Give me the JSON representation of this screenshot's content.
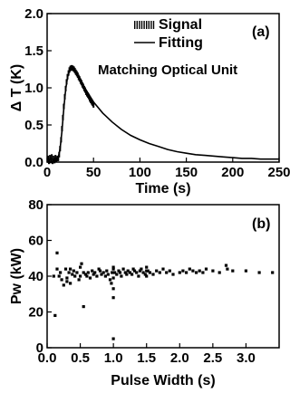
{
  "chart_data": [
    {
      "type": "line",
      "panel_label": "(a)",
      "annotation": "Matching Optical Unit",
      "xlabel": "Time (s)",
      "ylabel": "Δ T (K)",
      "xlim": [
        0,
        250
      ],
      "ylim": [
        0.0,
        2.0
      ],
      "x_ticks": [
        "0",
        "50",
        "100",
        "150",
        "200",
        "250"
      ],
      "y_ticks": [
        "0.0",
        "0.5",
        "1.0",
        "1.5",
        "2.0"
      ],
      "legend": {
        "position": "top-right"
      },
      "series": [
        {
          "name": "Signal",
          "style": "markers",
          "x": [
            1,
            2,
            3,
            4,
            5,
            6,
            7,
            8,
            9,
            10,
            11,
            12,
            13,
            14,
            15,
            16,
            17,
            18,
            19,
            20,
            21,
            22,
            23,
            24,
            25,
            26,
            27,
            28,
            29,
            30,
            31,
            32,
            33,
            34,
            35,
            36,
            37,
            38,
            39,
            40,
            41,
            42,
            43,
            44,
            45,
            46,
            47,
            48,
            49,
            50
          ],
          "y": [
            0.05,
            0.01,
            0.06,
            0.02,
            0.07,
            0.01,
            0.05,
            0.02,
            0.06,
            0.03,
            0.05,
            0.05,
            0.1,
            0.18,
            0.3,
            0.45,
            0.6,
            0.75,
            0.88,
            0.99,
            1.08,
            1.15,
            1.2,
            1.24,
            1.26,
            1.27,
            1.27,
            1.26,
            1.25,
            1.23,
            1.21,
            1.19,
            1.17,
            1.14,
            1.12,
            1.09,
            1.07,
            1.04,
            1.02,
            0.99,
            0.97,
            0.94,
            0.92,
            0.9,
            0.88,
            0.85,
            0.83,
            0.81,
            0.79,
            0.77
          ]
        },
        {
          "name": "Fitting",
          "style": "line",
          "x": [
            0,
            5,
            10,
            12,
            14,
            16,
            18,
            20,
            22,
            24,
            26,
            28,
            30,
            35,
            40,
            45,
            50,
            60,
            70,
            80,
            90,
            100,
            110,
            120,
            130,
            140,
            150,
            160,
            170,
            180,
            190,
            200,
            210,
            220,
            230,
            240,
            250
          ],
          "y": [
            0.0,
            0.0,
            0.02,
            0.06,
            0.18,
            0.42,
            0.72,
            0.98,
            1.14,
            1.23,
            1.27,
            1.26,
            1.24,
            1.13,
            1.01,
            0.91,
            0.81,
            0.66,
            0.54,
            0.44,
            0.36,
            0.3,
            0.25,
            0.21,
            0.17,
            0.14,
            0.12,
            0.1,
            0.09,
            0.08,
            0.07,
            0.06,
            0.05,
            0.05,
            0.04,
            0.04,
            0.04
          ]
        }
      ]
    },
    {
      "type": "scatter",
      "panel_label": "(b)",
      "xlabel": "Pulse Width (s)",
      "ylabel": "Pw (kW)",
      "xlim": [
        0.0,
        3.5
      ],
      "ylim": [
        0,
        80
      ],
      "x_ticks": [
        "0.0",
        "0.5",
        "1.0",
        "1.5",
        "2.0",
        "2.5",
        "3.0"
      ],
      "y_ticks": [
        "0",
        "20",
        "40",
        "60",
        "80"
      ],
      "series": [
        {
          "x": [
            0.12,
            0.15,
            0.18,
            0.2,
            0.22,
            0.25,
            0.28,
            0.3,
            0.33,
            0.35,
            0.38,
            0.4,
            0.42,
            0.45,
            0.48,
            0.5,
            0.52,
            0.55,
            0.58,
            0.6,
            0.62,
            0.65,
            0.68,
            0.7,
            0.72,
            0.75,
            0.78,
            0.8,
            0.82,
            0.85,
            0.88,
            0.9,
            0.92,
            0.95,
            0.97,
            0.98,
            1.0,
            1.0,
            1.0,
            1.0,
            1.02,
            1.05,
            1.08,
            1.1,
            1.12,
            1.15,
            1.18,
            1.2,
            1.22,
            1.25,
            1.28,
            1.3,
            1.32,
            1.35,
            1.38,
            1.4,
            1.42,
            1.45,
            1.48,
            1.5,
            1.52,
            1.55,
            1.6,
            1.65,
            1.7,
            1.75,
            1.8,
            1.85,
            1.9,
            2.0,
            2.05,
            2.1,
            2.15,
            2.2,
            2.25,
            2.3,
            2.35,
            2.4,
            2.5,
            2.6,
            2.7,
            2.72,
            2.8,
            3.0,
            3.2,
            3.4,
            0.1,
            0.15,
            0.3,
            0.35,
            0.5,
            0.55,
            1.0,
            1.0,
            1.5,
            1.5
          ],
          "y": [
            18,
            53,
            40,
            42,
            38,
            35,
            44,
            39,
            42,
            36,
            41,
            43,
            40,
            42,
            38,
            45,
            47,
            23,
            41,
            40,
            42,
            39,
            43,
            41,
            42,
            40,
            44,
            43,
            41,
            42,
            40,
            43,
            41,
            38,
            36,
            42,
            33,
            28,
            5,
            44,
            42,
            41,
            43,
            42,
            40,
            44,
            42,
            41,
            43,
            42,
            41,
            44,
            43,
            42,
            40,
            43,
            44,
            42,
            41,
            45,
            43,
            42,
            41,
            43,
            42,
            44,
            42,
            43,
            41,
            42,
            43,
            42,
            44,
            43,
            42,
            43,
            42,
            44,
            43,
            42,
            46,
            44,
            43,
            43,
            42,
            42,
            40,
            44,
            37,
            44,
            40,
            42,
            39,
            45,
            40,
            43
          ]
        }
      ]
    }
  ]
}
